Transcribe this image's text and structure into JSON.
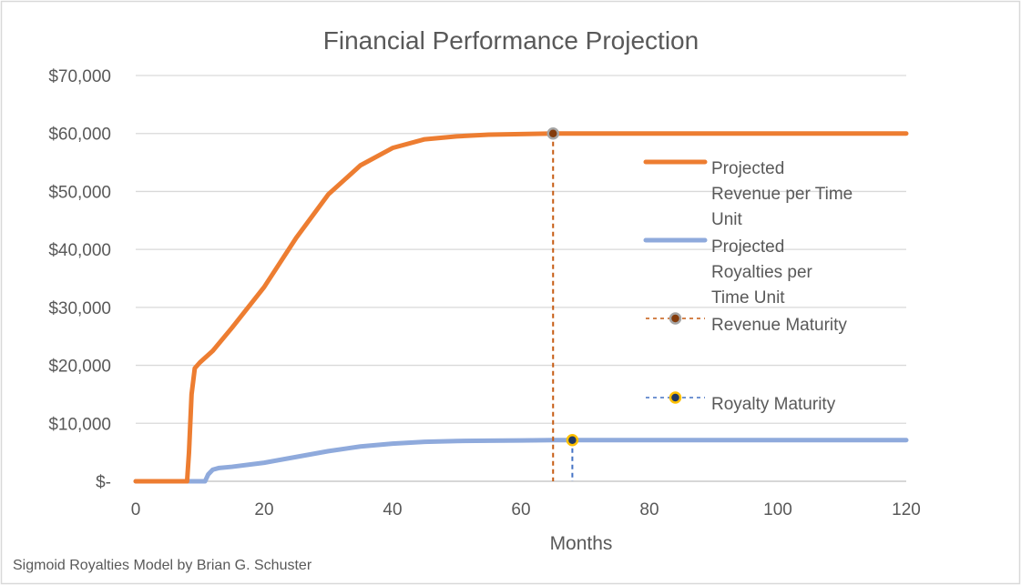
{
  "chart_data": {
    "type": "line",
    "title": "Financial Performance Projection",
    "xlabel": "Months",
    "ylabel": "",
    "xlim": [
      0,
      120
    ],
    "ylim": [
      0,
      70000
    ],
    "x_ticks": [
      "0",
      "20",
      "40",
      "60",
      "80",
      "100",
      "120"
    ],
    "x_tick_values": [
      0,
      20,
      40,
      60,
      80,
      100,
      120
    ],
    "y_ticks": [
      "$-",
      "$10,000",
      "$20,000",
      "$30,000",
      "$40,000",
      "$50,000",
      "$60,000",
      "$70,000"
    ],
    "y_tick_values": [
      0,
      10000,
      20000,
      30000,
      40000,
      50000,
      60000,
      70000
    ],
    "grid": true,
    "legend_position": "right",
    "series": [
      {
        "name": "Projected Revenue per Time Unit",
        "color": "#ED7D31",
        "x": [
          0,
          8,
          8.3,
          8.7,
          9.2,
          10,
          12,
          15,
          20,
          25,
          30,
          35,
          40,
          45,
          50,
          55,
          60,
          65,
          70,
          80,
          90,
          100,
          110,
          120
        ],
        "y": [
          0,
          0,
          5000,
          15000,
          19500,
          20500,
          22500,
          26500,
          33500,
          42000,
          49500,
          54500,
          57500,
          59000,
          59500,
          59800,
          59900,
          60000,
          60000,
          60000,
          60000,
          60000,
          60000,
          60000
        ]
      },
      {
        "name": "Projected Royalties per Time Unit",
        "color": "#8FAADC",
        "x": [
          0,
          10.8,
          11.3,
          12,
          13,
          15,
          20,
          25,
          30,
          35,
          40,
          45,
          50,
          55,
          60,
          65,
          70,
          80,
          90,
          100,
          110,
          120
        ],
        "y": [
          0,
          0,
          1200,
          2000,
          2300,
          2500,
          3200,
          4200,
          5200,
          6000,
          6500,
          6800,
          6950,
          7000,
          7050,
          7100,
          7100,
          7100,
          7100,
          7100,
          7100,
          7100
        ]
      }
    ],
    "markers": [
      {
        "name": "Revenue Maturity",
        "x": 65,
        "y": 60000,
        "line_color": "#C55A11",
        "fill": "#843C0C",
        "edge": "#A5A5A5"
      },
      {
        "name": "Royalty Maturity",
        "x": 68,
        "y": 7100,
        "line_color": "#4472C4",
        "fill": "#203864",
        "edge": "#FFC000"
      }
    ],
    "legend": [
      {
        "lines": [
          "Projected",
          "Revenue per Time",
          "Unit"
        ],
        "style": "line",
        "color": "#ED7D31"
      },
      {
        "lines": [
          "Projected",
          "Royalties per",
          "Time Unit"
        ],
        "style": "line",
        "color": "#8FAADC"
      },
      {
        "lines": [
          "Revenue Maturity"
        ],
        "style": "marker",
        "color": "#C55A11",
        "fill": "#843C0C",
        "edge": "#A5A5A5"
      },
      {
        "lines": [
          "Royalty Maturity"
        ],
        "style": "marker",
        "color": "#4472C4",
        "fill": "#203864",
        "edge": "#FFC000"
      }
    ]
  },
  "footer": {
    "credit": "Sigmoid Royalties Model by Brian G. Schuster"
  }
}
